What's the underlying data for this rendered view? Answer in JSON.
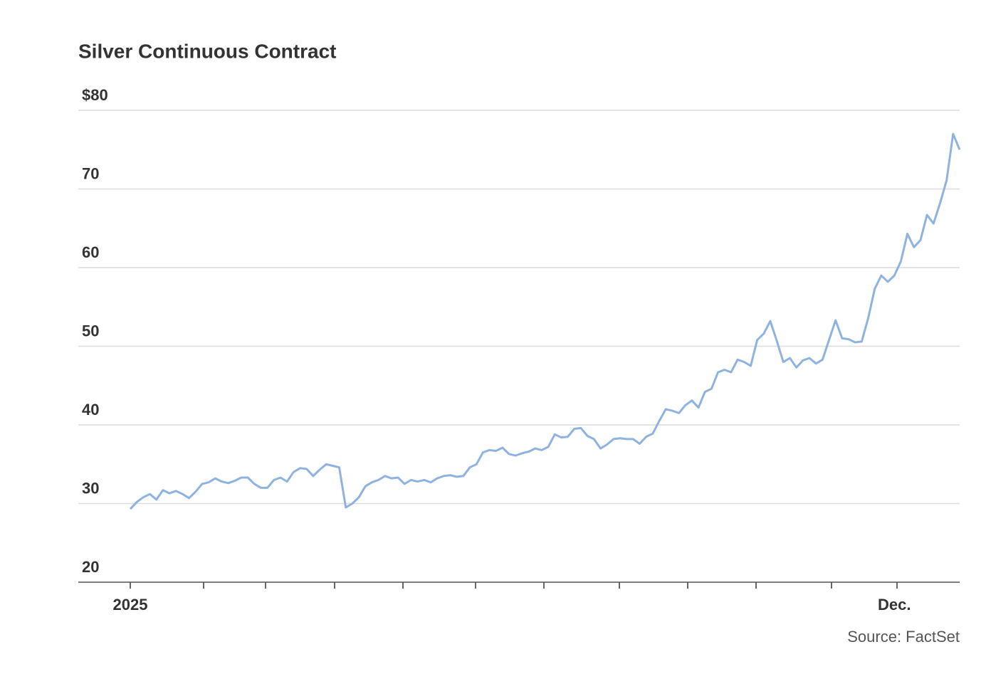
{
  "chart_data": {
    "type": "line",
    "title": "Silver Continuous Contract",
    "source": "Source: FactSet",
    "categories": [
      "2025",
      null,
      null,
      null,
      null,
      null,
      null,
      null,
      null,
      null,
      null,
      null,
      null,
      null,
      null,
      null,
      null,
      null,
      null,
      null,
      null,
      null,
      null,
      null,
      null,
      null,
      null,
      null,
      null,
      null,
      null,
      null,
      null,
      null,
      null,
      null,
      null,
      null,
      null,
      null,
      null,
      null,
      null,
      null,
      null,
      null,
      null,
      null,
      null,
      null,
      null,
      null,
      null,
      null,
      null,
      null,
      null,
      null,
      null,
      null,
      null,
      null,
      null,
      null,
      null,
      null,
      null,
      null,
      null,
      null,
      null,
      null,
      null,
      null,
      null,
      null,
      null,
      null,
      null,
      null,
      null,
      null,
      null,
      null,
      null,
      null,
      null,
      null,
      null,
      null,
      null,
      null,
      null,
      null,
      null,
      null,
      null,
      null,
      null,
      null,
      null,
      null,
      null,
      null,
      null,
      null,
      null,
      null,
      null,
      null,
      null,
      null,
      null,
      null,
      null,
      null,
      null,
      "Dec.",
      null,
      null,
      null,
      null,
      null,
      null,
      null,
      null,
      null,
      null
    ],
    "values": [
      29.3,
      30.2,
      30.8,
      31.2,
      30.5,
      31.7,
      31.3,
      31.6,
      31.2,
      30.7,
      31.5,
      32.5,
      32.7,
      33.2,
      32.8,
      32.6,
      32.9,
      33.3,
      33.3,
      32.5,
      32.0,
      32.0,
      33.0,
      33.3,
      32.8,
      34.0,
      34.5,
      34.4,
      33.5,
      34.3,
      35.0,
      34.8,
      34.6,
      29.5,
      30.0,
      30.8,
      32.2,
      32.7,
      33.0,
      33.5,
      33.2,
      33.3,
      32.5,
      33.0,
      32.8,
      33.0,
      32.7,
      33.2,
      33.5,
      33.6,
      33.4,
      33.5,
      34.6,
      35.0,
      36.5,
      36.8,
      36.7,
      37.1,
      36.3,
      36.1,
      36.4,
      36.6,
      37.0,
      36.8,
      37.2,
      38.8,
      38.4,
      38.5,
      39.5,
      39.6,
      38.6,
      38.2,
      37.0,
      37.5,
      38.2,
      38.3,
      38.2,
      38.2,
      37.6,
      38.5,
      38.9,
      40.5,
      42.0,
      41.8,
      41.5,
      42.5,
      43.1,
      42.2,
      44.2,
      44.6,
      46.7,
      47.0,
      46.7,
      48.3,
      48.0,
      47.5,
      50.8,
      51.6,
      53.2,
      50.7,
      48.0,
      48.5,
      47.3,
      48.2,
      48.5,
      47.8,
      48.3,
      50.8,
      53.3,
      51.0,
      50.9,
      50.5,
      50.6,
      53.6,
      57.3,
      59.0,
      58.2,
      59.0,
      60.8,
      64.3,
      62.6,
      63.5,
      66.7,
      65.6,
      68.2,
      71.1,
      77.0,
      75.0
    ],
    "color": "#8fb3e0",
    "ylim": [
      20,
      80
    ],
    "yticks": [
      20,
      30,
      40,
      50,
      60,
      70,
      {
        "value": 80,
        "label": "$80"
      }
    ],
    "grid": true
  }
}
